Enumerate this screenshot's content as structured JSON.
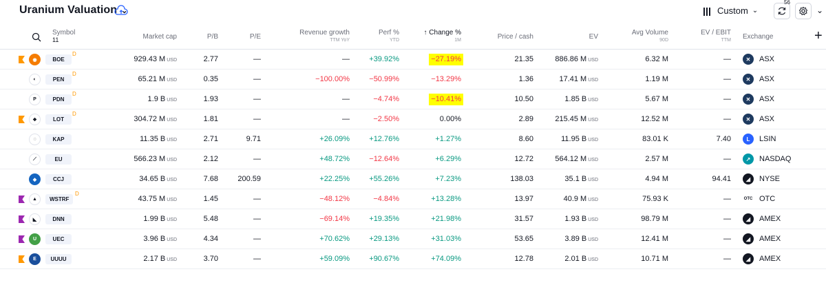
{
  "header": {
    "title": "Uranium Valuation",
    "view_label": "Custom",
    "badge_count": "56"
  },
  "columns": {
    "symbol": "Symbol",
    "symbol_count": "11",
    "market_cap": "Market cap",
    "pb": "P/B",
    "pe": "P/E",
    "rev_growth": "Revenue growth",
    "rev_growth_sub": "TTM YoY",
    "perf": "Perf %",
    "perf_sub": "YTD",
    "change": "↑ Change %",
    "change_sub": "1M",
    "price_cash": "Price / cash",
    "ev": "EV",
    "avg_volume": "Avg Volume",
    "avg_volume_sub": "90D",
    "ev_ebit": "EV / EBIT",
    "ev_ebit_sub": "TTM",
    "exchange": "Exchange"
  },
  "colors": {
    "positive": "#089981",
    "negative": "#f23645",
    "highlight": "#ffff00",
    "flag_orange": "#ff9800",
    "flag_purple": "#9c27b0"
  },
  "rows": [
    {
      "ticker": "BOE",
      "flag": "orange",
      "d": "D",
      "logo": "orange-atom-logo",
      "mcap": "929.43 M",
      "mcap_unit": "USD",
      "pb": "2.77",
      "pe": "—",
      "rev": "—",
      "rev_s": "",
      "perf": "+39.92%",
      "perf_s": "pos",
      "chg": "−27.19%",
      "chg_s": "neg",
      "chg_hl": true,
      "pc": "21.35",
      "ev": "886.86 M",
      "ev_unit": "USD",
      "vol": "6.32 M",
      "evebit": "—",
      "ex": "ASX",
      "ex_icon": "asx-icon"
    },
    {
      "ticker": "PEN",
      "flag": "",
      "d": "D",
      "logo": "pen-logo",
      "mcap": "65.21 M",
      "mcap_unit": "USD",
      "pb": "0.35",
      "pe": "—",
      "rev": "−100.00%",
      "rev_s": "neg",
      "perf": "−50.99%",
      "perf_s": "neg",
      "chg": "−13.29%",
      "chg_s": "neg",
      "chg_hl": false,
      "pc": "1.36",
      "ev": "17.41 M",
      "ev_unit": "USD",
      "vol": "1.19 M",
      "evebit": "—",
      "ex": "ASX",
      "ex_icon": "asx-icon"
    },
    {
      "ticker": "PDN",
      "flag": "",
      "d": "D",
      "logo": "p-logo",
      "mcap": "1.9 B",
      "mcap_unit": "USD",
      "pb": "1.93",
      "pe": "—",
      "rev": "—",
      "rev_s": "",
      "perf": "−4.74%",
      "perf_s": "neg",
      "chg": "−10.41%",
      "chg_s": "neg",
      "chg_hl": true,
      "pc": "10.50",
      "ev": "1.85 B",
      "ev_unit": "USD",
      "vol": "5.67 M",
      "evebit": "—",
      "ex": "ASX",
      "ex_icon": "asx-icon"
    },
    {
      "ticker": "LOT",
      "flag": "orange",
      "d": "D",
      "logo": "lot-logo",
      "mcap": "304.72 M",
      "mcap_unit": "USD",
      "pb": "1.81",
      "pe": "—",
      "rev": "—",
      "rev_s": "",
      "perf": "−2.50%",
      "perf_s": "neg",
      "chg": "0.00%",
      "chg_s": "",
      "chg_hl": false,
      "pc": "2.89",
      "ev": "215.45 M",
      "ev_unit": "USD",
      "vol": "12.52 M",
      "evebit": "—",
      "ex": "ASX",
      "ex_icon": "asx-icon"
    },
    {
      "ticker": "KAP",
      "flag": "",
      "d": "",
      "logo": "kap-logo",
      "mcap": "11.35 B",
      "mcap_unit": "USD",
      "pb": "2.71",
      "pe": "9.71",
      "rev": "+26.09%",
      "rev_s": "pos",
      "perf": "+12.76%",
      "perf_s": "pos",
      "chg": "+1.27%",
      "chg_s": "pos",
      "chg_hl": false,
      "pc": "8.60",
      "ev": "11.95 B",
      "ev_unit": "USD",
      "vol": "83.01 K",
      "evebit": "7.40",
      "ex": "LSIN",
      "ex_icon": "lse-icon"
    },
    {
      "ticker": "EU",
      "flag": "",
      "d": "",
      "logo": "eu-logo",
      "mcap": "566.23 M",
      "mcap_unit": "USD",
      "pb": "2.12",
      "pe": "—",
      "rev": "+48.72%",
      "rev_s": "pos",
      "perf": "−12.64%",
      "perf_s": "neg",
      "chg": "+6.29%",
      "chg_s": "pos",
      "chg_hl": false,
      "pc": "12.72",
      "ev": "564.12 M",
      "ev_unit": "USD",
      "vol": "2.57 M",
      "evebit": "—",
      "ex": "NASDAQ",
      "ex_icon": "nasdaq-icon"
    },
    {
      "ticker": "CCJ",
      "flag": "",
      "d": "",
      "logo": "ccj-logo",
      "mcap": "34.65 B",
      "mcap_unit": "USD",
      "pb": "7.68",
      "pe": "200.59",
      "rev": "+22.25%",
      "rev_s": "pos",
      "perf": "+55.26%",
      "perf_s": "pos",
      "chg": "+7.23%",
      "chg_s": "pos",
      "chg_hl": false,
      "pc": "138.03",
      "ev": "35.1 B",
      "ev_unit": "USD",
      "vol": "4.94 M",
      "evebit": "94.41",
      "ex": "NYSE",
      "ex_icon": "nyse-icon"
    },
    {
      "ticker": "WSTRF",
      "flag": "purple",
      "d": "D",
      "logo": "wstrf-logo",
      "mcap": "43.75 M",
      "mcap_unit": "USD",
      "pb": "1.45",
      "pe": "—",
      "rev": "−48.12%",
      "rev_s": "neg",
      "perf": "−4.84%",
      "perf_s": "neg",
      "chg": "+13.28%",
      "chg_s": "pos",
      "chg_hl": false,
      "pc": "13.97",
      "ev": "40.9 M",
      "ev_unit": "USD",
      "vol": "75.93 K",
      "evebit": "—",
      "ex": "OTC",
      "ex_icon": "otc-icon"
    },
    {
      "ticker": "DNN",
      "flag": "purple",
      "d": "",
      "logo": "dnn-logo",
      "mcap": "1.99 B",
      "mcap_unit": "USD",
      "pb": "5.48",
      "pe": "—",
      "rev": "−69.14%",
      "rev_s": "neg",
      "perf": "+19.35%",
      "perf_s": "pos",
      "chg": "+21.98%",
      "chg_s": "pos",
      "chg_hl": false,
      "pc": "31.57",
      "ev": "1.93 B",
      "ev_unit": "USD",
      "vol": "98.79 M",
      "evebit": "—",
      "ex": "AMEX",
      "ex_icon": "amex-icon"
    },
    {
      "ticker": "UEC",
      "flag": "purple",
      "d": "",
      "logo": "uec-logo",
      "mcap": "3.96 B",
      "mcap_unit": "USD",
      "pb": "4.34",
      "pe": "—",
      "rev": "+70.62%",
      "rev_s": "pos",
      "perf": "+29.13%",
      "perf_s": "pos",
      "chg": "+31.03%",
      "chg_s": "pos",
      "chg_hl": false,
      "pc": "53.65",
      "ev": "3.89 B",
      "ev_unit": "USD",
      "vol": "12.41 M",
      "evebit": "—",
      "ex": "AMEX",
      "ex_icon": "amex-icon"
    },
    {
      "ticker": "UUUU",
      "flag": "orange",
      "d": "",
      "logo": "uuuu-logo",
      "mcap": "2.17 B",
      "mcap_unit": "USD",
      "pb": "3.70",
      "pe": "—",
      "rev": "+59.09%",
      "rev_s": "pos",
      "perf": "+90.67%",
      "perf_s": "pos",
      "chg": "+74.09%",
      "chg_s": "pos",
      "chg_hl": false,
      "pc": "12.78",
      "ev": "2.01 B",
      "ev_unit": "USD",
      "vol": "10.71 M",
      "evebit": "—",
      "ex": "AMEX",
      "ex_icon": "amex-icon"
    }
  ]
}
